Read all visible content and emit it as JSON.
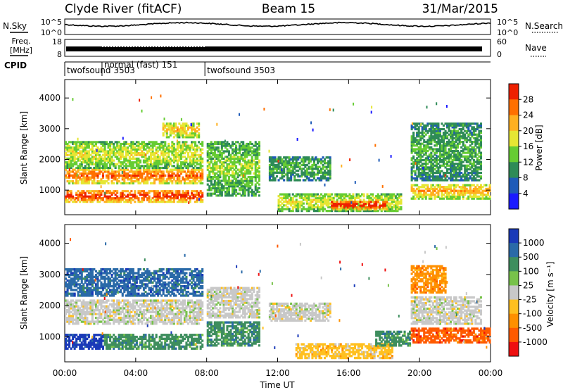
{
  "header": {
    "station": "Clyde River (fitACF)",
    "beam": "Beam 15",
    "date": "31/Mar/2015"
  },
  "status_panels": {
    "nsky_label": "N.Sky",
    "nsearch_label": "N.Search",
    "noise_ticks": [
      "10^5",
      "10^0"
    ],
    "freq_label_line1": "Freq.",
    "freq_label_line2": "[MHz]",
    "freq_ticks": [
      "18",
      "8"
    ],
    "nave_label": "Nave",
    "nave_ticks": [
      "60",
      "0"
    ],
    "cpid_label": "CPID",
    "cpid_entries": [
      {
        "name": "twofsound 3503",
        "start_hour": 0.0,
        "end_hour": 2.1
      },
      {
        "name": "normal (fast)  151",
        "start_hour": 2.1,
        "end_hour": 7.9
      },
      {
        "name": "twofsound 3503",
        "start_hour": 7.9,
        "end_hour": 24.0
      }
    ]
  },
  "chart_data": [
    {
      "type": "heatmap",
      "quantity": "Power",
      "ylabel": "Slant Range [km]",
      "ylim": [
        200,
        4600
      ],
      "yticks": [
        1000,
        2000,
        3000,
        4000
      ],
      "xlim_hours": [
        0,
        24
      ],
      "colorbar_label": "Power [dB]",
      "colorbar_ticks": [
        "4",
        "8",
        "12",
        "16",
        "20",
        "24",
        "28"
      ],
      "colorbar_colors": [
        "#1a1aff",
        "#1f5bb8",
        "#2e8b57",
        "#66cc33",
        "#e6e633",
        "#ffb020",
        "#ff7000",
        "#ee2000"
      ],
      "echo_regions": [
        {
          "t0": 0.0,
          "t1": 7.8,
          "r0": 600,
          "r1": 1000,
          "level": 0.85
        },
        {
          "t0": 0.0,
          "t1": 7.8,
          "r0": 1200,
          "r1": 1700,
          "level": 0.75
        },
        {
          "t0": 0.0,
          "t1": 7.8,
          "r0": 1700,
          "r1": 2600,
          "level": 0.45
        },
        {
          "t0": 5.5,
          "t1": 7.6,
          "r0": 2700,
          "r1": 3200,
          "level": 0.55
        },
        {
          "t0": 8.0,
          "t1": 11.0,
          "r0": 800,
          "r1": 2600,
          "level": 0.35
        },
        {
          "t0": 11.5,
          "t1": 15.0,
          "r0": 1300,
          "r1": 2100,
          "level": 0.25
        },
        {
          "t0": 12.0,
          "t1": 19.0,
          "r0": 300,
          "r1": 900,
          "level": 0.45
        },
        {
          "t0": 15.0,
          "t1": 18.2,
          "r0": 350,
          "r1": 650,
          "level": 0.95
        },
        {
          "t0": 19.5,
          "t1": 24.0,
          "r0": 700,
          "r1": 1200,
          "level": 0.6
        },
        {
          "t0": 19.5,
          "t1": 23.5,
          "r0": 1300,
          "r1": 3200,
          "level": 0.25
        }
      ]
    },
    {
      "type": "heatmap",
      "quantity": "Velocity",
      "ylabel": "Slant Range [km]",
      "xlabel": "Time UT",
      "ylim": [
        200,
        4600
      ],
      "yticks": [
        1000,
        2000,
        3000,
        4000
      ],
      "xlim_hours": [
        0,
        24
      ],
      "xticks": [
        "00:00",
        "04:00",
        "08:00",
        "12:00",
        "16:00",
        "20:00",
        "00:00"
      ],
      "colorbar_label": "Velocity  [m s⁻¹]",
      "colorbar_ticks": [
        "1000",
        "500",
        "100",
        "25",
        "-25",
        "-100",
        "-500",
        "-1000"
      ],
      "colorbar_colors": [
        "#1a3ab8",
        "#2a6aa8",
        "#3e8e5e",
        "#77c24a",
        "#c8c8c8",
        "#ffc020",
        "#ff9000",
        "#ff5a00",
        "#ee1010"
      ],
      "echo_regions": [
        {
          "t0": 0.0,
          "t1": 2.2,
          "r0": 600,
          "r1": 1100,
          "cls": 0
        },
        {
          "t0": 2.2,
          "t1": 7.8,
          "r0": 600,
          "r1": 1100,
          "cls": 2
        },
        {
          "t0": 0.0,
          "t1": 7.8,
          "r0": 1400,
          "r1": 2200,
          "cls": 4
        },
        {
          "t0": 0.0,
          "t1": 7.8,
          "r0": 2300,
          "r1": 3200,
          "cls": 1
        },
        {
          "t0": 8.0,
          "t1": 11.0,
          "r0": 700,
          "r1": 1500,
          "cls": 2
        },
        {
          "t0": 8.0,
          "t1": 11.0,
          "r0": 1600,
          "r1": 2600,
          "cls": 4
        },
        {
          "t0": 11.5,
          "t1": 15.0,
          "r0": 1500,
          "r1": 2100,
          "cls": 4
        },
        {
          "t0": 13.0,
          "t1": 18.5,
          "r0": 300,
          "r1": 800,
          "cls": 5
        },
        {
          "t0": 17.5,
          "t1": 19.5,
          "r0": 700,
          "r1": 1200,
          "cls": 2
        },
        {
          "t0": 19.5,
          "t1": 24.0,
          "r0": 800,
          "r1": 1300,
          "cls": 7
        },
        {
          "t0": 19.5,
          "t1": 23.5,
          "r0": 1400,
          "r1": 2300,
          "cls": 4
        },
        {
          "t0": 19.5,
          "t1": 21.5,
          "r0": 2400,
          "r1": 3300,
          "cls": 6
        }
      ]
    }
  ]
}
